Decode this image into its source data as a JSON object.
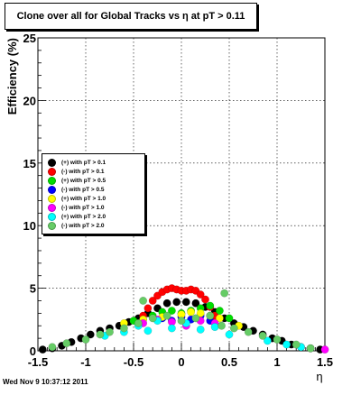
{
  "chart_data": {
    "type": "scatter",
    "title": "Clone  over all for Global Tracks vs η at pT > 0.11",
    "xlabel": "η",
    "ylabel": "Efficiency (%)",
    "xlim": [
      -1.5,
      1.5
    ],
    "ylim": [
      0,
      25
    ],
    "xticks": [
      -1.5,
      -1,
      -0.5,
      0,
      0.5,
      1,
      1.5
    ],
    "xtick_labels": [
      "-1.5",
      "-1",
      "-0.5",
      "0",
      "0.5",
      "1",
      "1.5"
    ],
    "yticks": [
      0,
      5,
      10,
      15,
      20,
      25
    ],
    "ytick_labels": [
      "0",
      "5",
      "10",
      "15",
      "20",
      "25"
    ],
    "grid": true,
    "legend_position": "left-middle",
    "series": [
      {
        "name": "(+) with pT > 0.1",
        "color": "#000000",
        "x": [
          -1.45,
          -1.35,
          -1.25,
          -1.15,
          -1.05,
          -0.95,
          -0.85,
          -0.75,
          -0.65,
          -0.55,
          -0.45,
          -0.35,
          -0.25,
          -0.15,
          -0.05,
          0.05,
          0.15,
          0.25,
          0.35,
          0.45,
          0.55,
          0.65,
          0.75,
          0.85,
          0.95,
          1.05,
          1.15,
          1.25,
          1.35,
          1.45
        ],
        "y": [
          0.1,
          0.2,
          0.4,
          0.7,
          1.0,
          1.3,
          1.6,
          1.8,
          2.0,
          2.3,
          2.6,
          3.0,
          3.4,
          3.8,
          3.9,
          3.9,
          3.8,
          3.5,
          3.1,
          2.6,
          2.2,
          1.9,
          1.6,
          1.3,
          1.0,
          0.8,
          0.5,
          0.3,
          0.2,
          0.1
        ]
      },
      {
        "name": "(-) with pT > 0.1",
        "color": "#ff0000",
        "x": [
          -0.45,
          -0.4,
          -0.35,
          -0.3,
          -0.25,
          -0.2,
          -0.15,
          -0.1,
          -0.05,
          0.0,
          0.05,
          0.1,
          0.15,
          0.2,
          0.25,
          0.3,
          0.35
        ],
        "y": [
          2.2,
          2.8,
          3.4,
          4.0,
          4.4,
          4.7,
          4.9,
          5.0,
          4.9,
          4.8,
          4.8,
          4.9,
          4.8,
          4.5,
          4.1,
          3.5,
          2.8
        ]
      },
      {
        "name": "(+) with pT > 0.5",
        "color": "#00dd00",
        "x": [
          -0.5,
          -0.4,
          -0.3,
          -0.2,
          -0.1,
          0.0,
          0.1,
          0.2,
          0.3,
          0.4,
          0.5
        ],
        "y": [
          2.4,
          2.5,
          2.8,
          3.1,
          3.2,
          3.0,
          3.2,
          3.4,
          3.6,
          3.2,
          2.6
        ]
      },
      {
        "name": "(-) with pT > 0.5",
        "color": "#0000ff",
        "x": [
          -0.2,
          -0.1,
          0.0,
          0.1,
          0.2,
          0.3
        ],
        "y": [
          2.6,
          2.4,
          2.7,
          2.5,
          2.8,
          2.4
        ]
      },
      {
        "name": "(+) with pT > 1.0",
        "color": "#ffff00",
        "x": [
          -0.6,
          -0.4,
          -0.2,
          0.0,
          0.1,
          0.2,
          0.3,
          0.4,
          0.6
        ],
        "y": [
          2.2,
          2.5,
          2.7,
          2.9,
          3.1,
          3.0,
          2.8,
          2.6,
          2.0
        ]
      },
      {
        "name": "(-) with pT > 1.0",
        "color": "#ff00ff",
        "x": [
          -0.4,
          -0.25,
          -0.1,
          0.05,
          0.2,
          0.35,
          1.5
        ],
        "y": [
          2.2,
          2.5,
          2.3,
          2.0,
          2.4,
          2.2,
          0.1
        ]
      },
      {
        "name": "(+) with pT > 2.0",
        "color": "#00ffff",
        "x": [
          -0.8,
          -0.6,
          -0.45,
          -0.35,
          -0.25,
          -0.1,
          0.05,
          0.2,
          0.35,
          0.5,
          0.9,
          1.1,
          1.25
        ],
        "y": [
          1.2,
          1.5,
          2.0,
          1.6,
          2.4,
          1.8,
          2.2,
          1.7,
          1.9,
          1.3,
          0.8,
          0.5,
          0.3
        ]
      },
      {
        "name": "(-) with pT > 2.0",
        "color": "#66cc66",
        "x": [
          -1.35,
          -1.2,
          -1.0,
          -0.85,
          -0.75,
          -0.6,
          -0.45,
          -0.4,
          -0.3,
          -0.15,
          0.0,
          0.15,
          0.3,
          0.42,
          0.45,
          0.55,
          0.7,
          0.85,
          1.0,
          1.2,
          1.35
        ],
        "y": [
          0.3,
          0.6,
          0.9,
          1.3,
          1.5,
          1.8,
          2.2,
          4.0,
          2.6,
          2.8,
          2.4,
          2.6,
          2.8,
          2.0,
          4.6,
          1.8,
          1.5,
          1.2,
          0.9,
          0.5,
          0.2
        ]
      }
    ]
  },
  "footer": {
    "timestamp": "Wed Nov  9 10:37:12 2011"
  }
}
